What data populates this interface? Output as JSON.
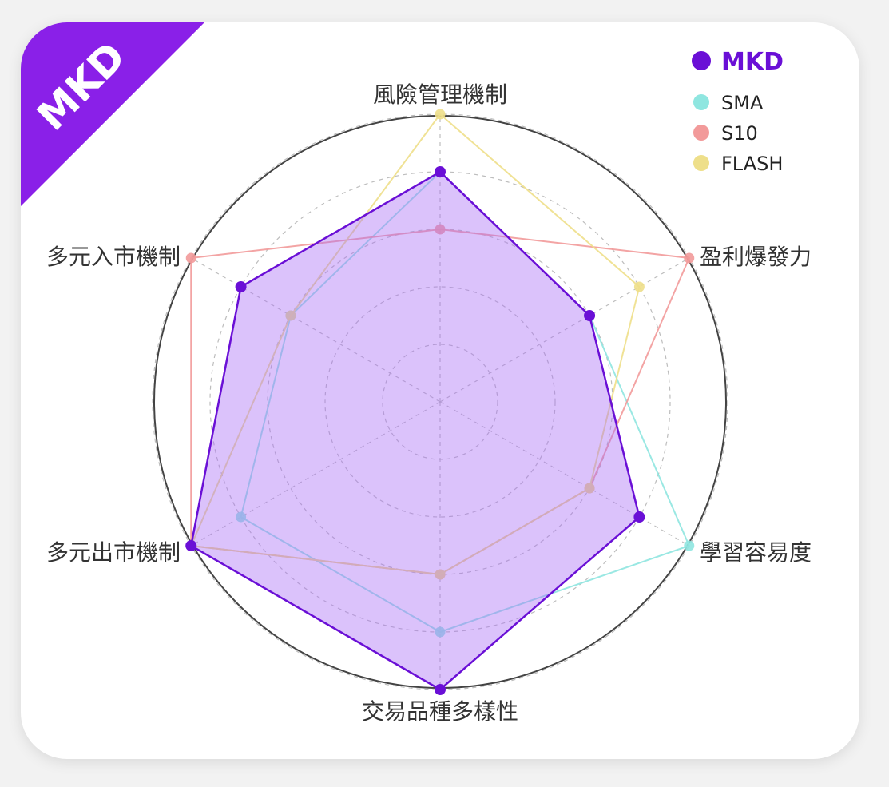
{
  "badge": {
    "label": "MKD",
    "color": "#8a20e8"
  },
  "chart_data": {
    "type": "radar",
    "axes": [
      "風險管理機制",
      "盈利爆發力",
      "學習容易度",
      "交易品種多樣性",
      "多元出市機制",
      "多元入市機制"
    ],
    "max": 5,
    "rings": 5,
    "series": [
      {
        "name": "MKD",
        "values": [
          4,
          3,
          4,
          5,
          5,
          4
        ],
        "color": "#6a0fd6",
        "fill": "rgba(170,110,245,0.42)",
        "emphasis": true
      },
      {
        "name": "SMA",
        "values": [
          4,
          3,
          5,
          4,
          4,
          3
        ],
        "color": "#8fe6e0"
      },
      {
        "name": "S10",
        "values": [
          3,
          5,
          3,
          3,
          5,
          5
        ],
        "color": "#f29a9a"
      },
      {
        "name": "FLASH",
        "values": [
          5,
          4,
          3,
          3,
          5,
          3
        ],
        "color": "#eedf8a"
      }
    ],
    "legend": "top-right"
  }
}
